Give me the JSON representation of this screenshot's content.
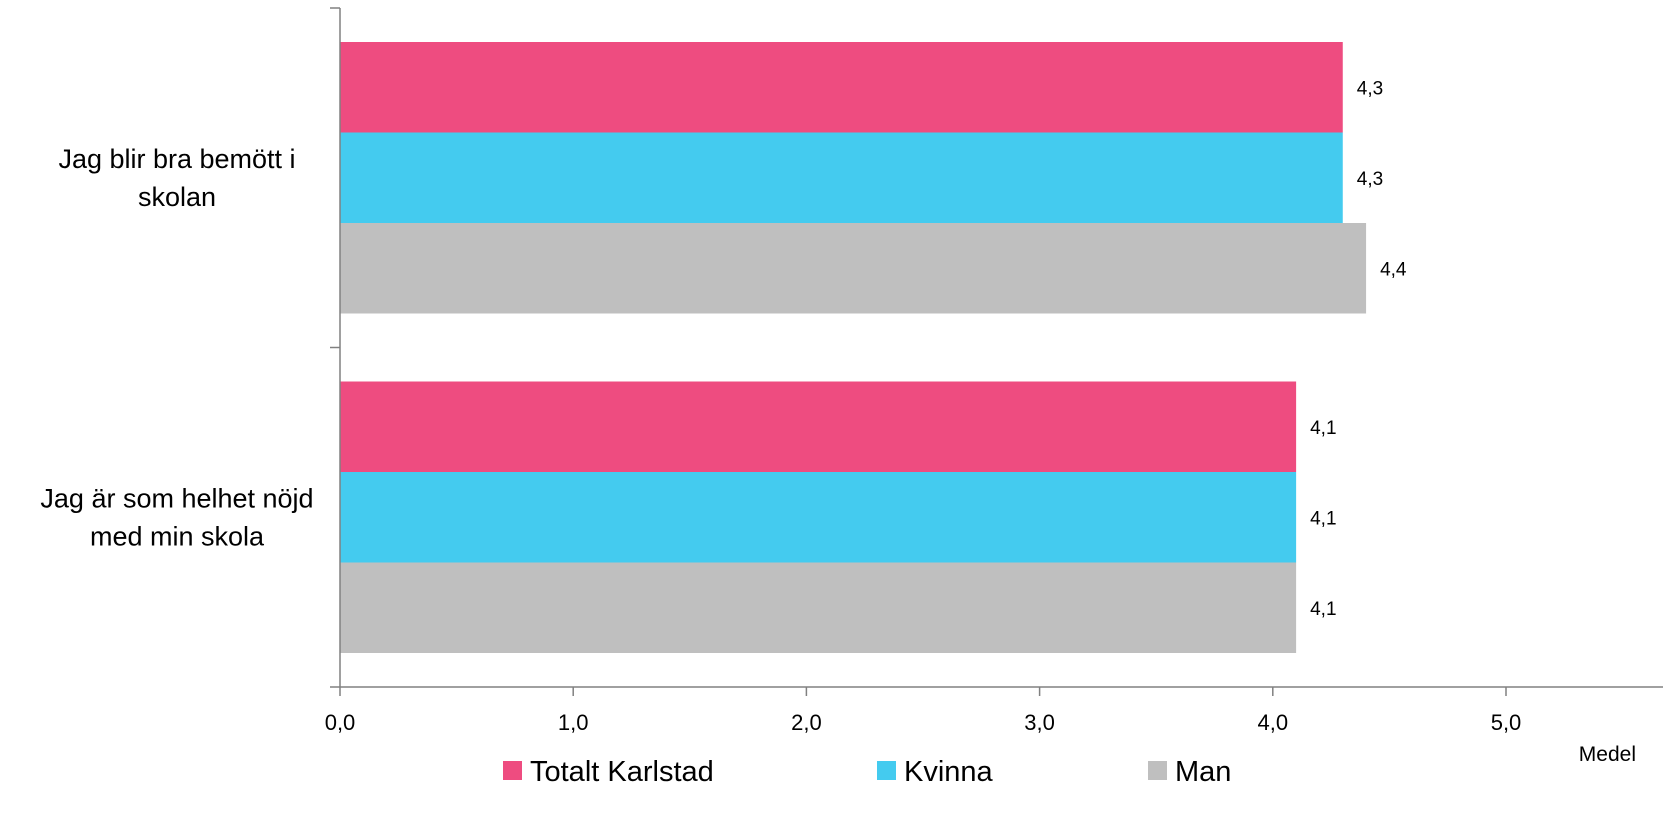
{
  "chart_data": {
    "type": "bar",
    "orientation": "horizontal",
    "categories": [
      [
        "Jag blir bra bemött i",
        "skolan"
      ],
      [
        "Jag är som helhet nöjd",
        "med min skola"
      ]
    ],
    "series": [
      {
        "name": "Totalt Karlstad",
        "color": "#ee4c80",
        "values": [
          4.3,
          4.1
        ]
      },
      {
        "name": "Kvinna",
        "color": "#44cbef",
        "values": [
          4.3,
          4.1
        ]
      },
      {
        "name": "Man",
        "color": "#bfbfbf",
        "values": [
          4.4,
          4.1
        ]
      }
    ],
    "data_labels": [
      [
        "4,3",
        "4,1"
      ],
      [
        "4,3",
        "4,1"
      ],
      [
        "4,4",
        "4,1"
      ]
    ],
    "xlim": [
      0,
      5
    ],
    "x_ticks": [
      0,
      1,
      2,
      3,
      4,
      5
    ],
    "x_tick_labels": [
      "0,0",
      "1,0",
      "2,0",
      "3,0",
      "4,0",
      "5,0"
    ],
    "xlabel": "Medel",
    "legend_position": "bottom",
    "grid": false
  }
}
